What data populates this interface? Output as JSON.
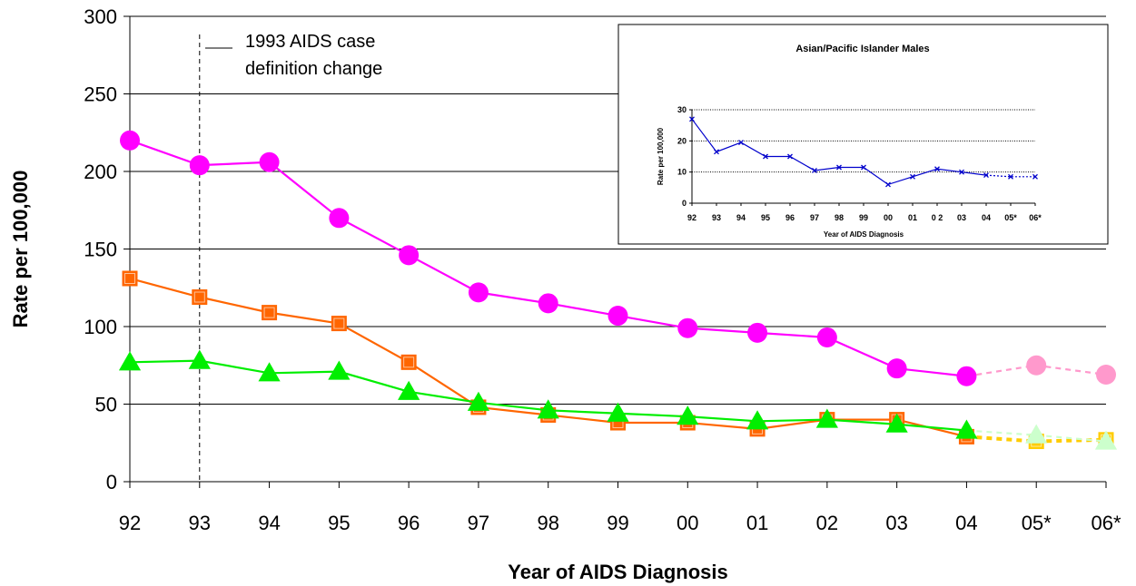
{
  "chart_data": {
    "main": {
      "type": "line",
      "xlabel": "Year of AIDS Diagnosis",
      "ylabel": "Rate per 100,000",
      "ylim": [
        0,
        300
      ],
      "yticks": [
        0,
        50,
        100,
        150,
        200,
        250,
        300
      ],
      "categories": [
        "92",
        "93",
        "94",
        "95",
        "96",
        "97",
        "98",
        "99",
        "00",
        "01",
        "02",
        "03",
        "04",
        "05*",
        "06*"
      ],
      "grid": "horizontal",
      "annotation": {
        "category": "93",
        "line1": "1993 AIDS case",
        "line2": "definition change"
      },
      "series": [
        {
          "marker": "circle",
          "color": "#ff00ff",
          "projected_color": "#ff99cc",
          "values": [
            220,
            204,
            206,
            170,
            146,
            122,
            115,
            107,
            99,
            96,
            93,
            73,
            68,
            75,
            69
          ],
          "projected_from_index": 12
        },
        {
          "marker": "square",
          "color": "#ff6600",
          "projected_color": "#ffcc00",
          "values": [
            131,
            119,
            109,
            102,
            77,
            48,
            43,
            38,
            38,
            34,
            40,
            40,
            29,
            26,
            27
          ],
          "projected_from_index": 12
        },
        {
          "marker": "triangle",
          "color": "#00ee00",
          "projected_color": "#ccffcc",
          "values": [
            77,
            78,
            70,
            71,
            58,
            51,
            46,
            44,
            42,
            39,
            40,
            37,
            33,
            30,
            26
          ],
          "projected_from_index": 12
        }
      ]
    },
    "inset": {
      "type": "line",
      "title": "Asian/Pacific Islander Males",
      "xlabel": "Year of AIDS Diagnosis",
      "ylabel": "Rate per 100,000",
      "ylim": [
        0,
        30
      ],
      "yticks": [
        0,
        10,
        20,
        30
      ],
      "categories": [
        "92",
        "93",
        "94",
        "95",
        "96",
        "97",
        "98",
        "99",
        "00",
        "01",
        "0 2",
        "03",
        "04",
        "05*",
        "06*"
      ],
      "grid": "horizontal dotted",
      "series": [
        {
          "marker": "x",
          "color": "#0000cc",
          "values": [
            27,
            16.5,
            19.5,
            15,
            15,
            10.5,
            11.5,
            11.5,
            6,
            8.5,
            11,
            10,
            9,
            8.5,
            8.5
          ],
          "projected_from_index": 12
        }
      ]
    }
  }
}
